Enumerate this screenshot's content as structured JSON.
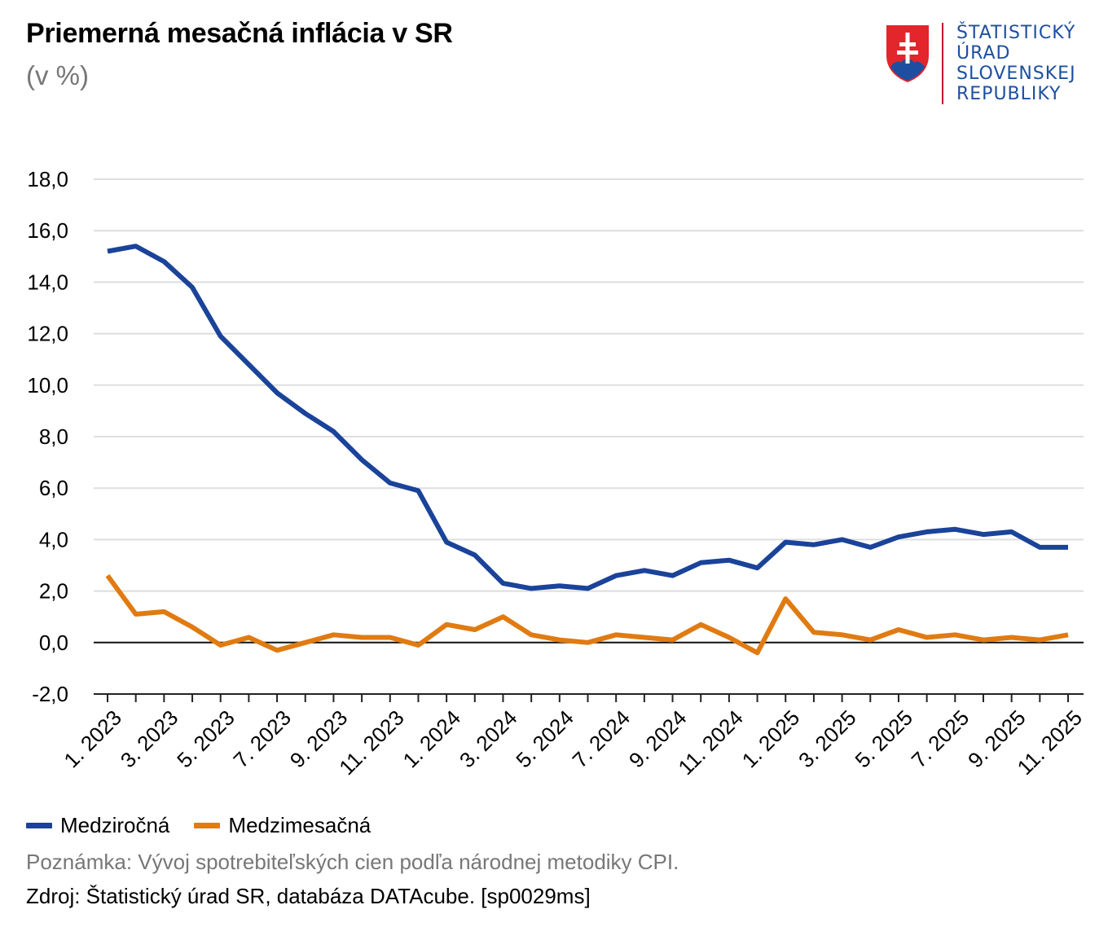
{
  "header": {
    "title": "Priemerná mesačná inflácia v SR",
    "subtitle": "(v %)"
  },
  "logo": {
    "icon": "slovak-coat-of-arms-icon",
    "lines": [
      "ŠTATISTICKÝ",
      "ÚRAD",
      "SLOVENSKEJ",
      "REPUBLIKY"
    ]
  },
  "legend": {
    "items": [
      {
        "label": "Medziročná",
        "color": "#1a4399"
      },
      {
        "label": "Medzimesačná",
        "color": "#e07b12"
      }
    ]
  },
  "footer": {
    "note": "Poznámka: Vývoj spotrebiteľských cien podľa národnej metodiky CPI.",
    "source": "Zdroj: Štatistický úrad SR, databáza DATAcube. [sp0029ms]"
  },
  "chart_data": {
    "type": "line",
    "title": "Priemerná mesačná inflácia v SR",
    "subtitle": "(v %)",
    "ylim": [
      -2,
      18
    ],
    "yticks": [
      "-2,0",
      "0,0",
      "2,0",
      "4,0",
      "6,0",
      "8,0",
      "10,0",
      "12,0",
      "14,0",
      "16,0",
      "18,0"
    ],
    "grid": true,
    "legend_position": "bottom-left",
    "x": [
      "1. 2023",
      "2. 2023",
      "3. 2023",
      "4. 2023",
      "5. 2023",
      "6. 2023",
      "7. 2023",
      "8. 2023",
      "9. 2023",
      "10. 2023",
      "11. 2023",
      "12. 2023",
      "1. 2024",
      "2. 2024",
      "3. 2024",
      "4. 2024",
      "5. 2024",
      "6. 2024",
      "7. 2024",
      "8. 2024",
      "9. 2024",
      "10. 2024",
      "11. 2024",
      "12. 2024",
      "1. 2025",
      "2. 2025",
      "3. 2025",
      "4. 2025",
      "5. 2025",
      "6. 2025",
      "7. 2025",
      "8. 2025",
      "9. 2025",
      "10. 2025",
      "11. 2025"
    ],
    "xtick_labels": [
      "1. 2023",
      "3. 2023",
      "5. 2023",
      "7. 2023",
      "9. 2023",
      "11. 2023",
      "1. 2024",
      "3. 2024",
      "5. 2024",
      "7. 2024",
      "9. 2024",
      "11. 2024",
      "1. 2025",
      "3. 2025",
      "5. 2025",
      "7. 2025",
      "9. 2025",
      "11. 2025"
    ],
    "series": [
      {
        "name": "Medziročná",
        "color": "#1a4399",
        "values": [
          15.2,
          15.4,
          14.8,
          13.8,
          11.9,
          10.8,
          9.7,
          8.9,
          8.2,
          7.1,
          6.2,
          5.9,
          3.9,
          3.4,
          2.3,
          2.1,
          2.2,
          2.1,
          2.6,
          2.8,
          2.6,
          3.1,
          3.2,
          2.9,
          3.9,
          3.8,
          4.0,
          3.7,
          4.1,
          4.3,
          4.4,
          4.2,
          4.3,
          3.7,
          3.7
        ]
      },
      {
        "name": "Medzimesačná",
        "color": "#e07b12",
        "values": [
          2.6,
          1.1,
          1.2,
          0.6,
          -0.1,
          0.2,
          -0.3,
          0.0,
          0.3,
          0.2,
          0.2,
          -0.1,
          0.7,
          0.5,
          1.0,
          0.3,
          0.1,
          0.0,
          0.3,
          0.2,
          0.1,
          0.7,
          0.2,
          -0.4,
          1.7,
          0.4,
          0.3,
          0.1,
          0.5,
          0.2,
          0.3,
          0.1,
          0.2,
          0.1,
          0.3
        ]
      }
    ]
  }
}
